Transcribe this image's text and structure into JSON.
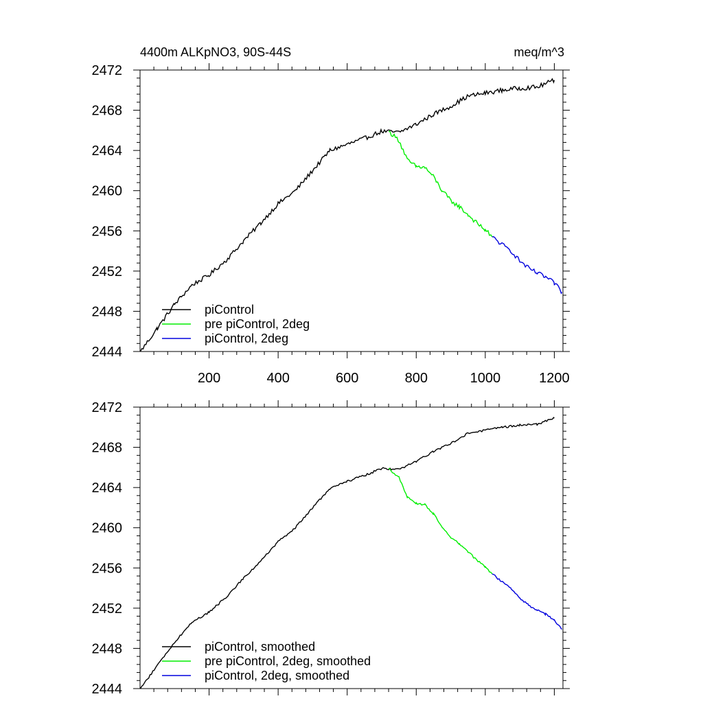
{
  "page": {
    "title_left": "4400m ALKpNO3, 90S-44S",
    "title_right": "meq/m^3"
  },
  "chart_data": [
    {
      "type": "line",
      "title": "4400m ALKpNO3, 90S-44S",
      "units": "meq/m^3",
      "xlim": [
        0,
        1225
      ],
      "ylim": [
        2444,
        2472
      ],
      "xticks": [
        200,
        400,
        600,
        800,
        1000,
        1200
      ],
      "yticks": [
        2444,
        2448,
        2452,
        2456,
        2460,
        2464,
        2468,
        2472
      ],
      "xticklabels": [
        "200",
        "400",
        "600",
        "800",
        "1000",
        "1200"
      ],
      "yticklabels": [
        "2444",
        "2448",
        "2452",
        "2456",
        "2460",
        "2464",
        "2468",
        "2472"
      ],
      "legend_position": "bottom-left",
      "series": [
        {
          "name": "piControl",
          "color": "#000000",
          "x": [
            1,
            50,
            100,
            150,
            200,
            250,
            300,
            350,
            400,
            450,
            500,
            550,
            600,
            650,
            700,
            750,
            800,
            850,
            900,
            950,
            1000,
            1050,
            1100,
            1150,
            1200
          ],
          "y": [
            2444.0,
            2446.3,
            2448.7,
            2450.6,
            2451.6,
            2453.1,
            2455.0,
            2456.8,
            2458.7,
            2460.0,
            2462.0,
            2464.0,
            2464.6,
            2465.2,
            2465.9,
            2465.8,
            2466.6,
            2467.6,
            2468.4,
            2469.4,
            2469.7,
            2470.0,
            2470.2,
            2470.3,
            2471.0
          ]
        },
        {
          "name": "pre piControl, 2deg",
          "color": "#00ee00",
          "x": [
            720,
            750,
            775,
            800,
            825,
            850,
            875,
            900,
            925,
            950,
            975,
            1000,
            1020
          ],
          "y": [
            2465.9,
            2465.0,
            2463.0,
            2462.4,
            2462.3,
            2461.4,
            2460.0,
            2459.0,
            2458.4,
            2457.6,
            2456.8,
            2456.1,
            2455.4
          ]
        },
        {
          "name": "piControl, 2deg",
          "color": "#0000dd",
          "x": [
            1020,
            1050,
            1075,
            1100,
            1125,
            1150,
            1175,
            1200,
            1222
          ],
          "y": [
            2455.4,
            2454.6,
            2454.0,
            2453.0,
            2452.3,
            2451.8,
            2451.4,
            2450.8,
            2449.9
          ]
        }
      ]
    },
    {
      "type": "line",
      "xlim": [
        0,
        1225
      ],
      "ylim": [
        2444,
        2472
      ],
      "xticks": [
        200,
        400,
        600,
        800,
        1000,
        1200
      ],
      "yticks": [
        2444,
        2448,
        2452,
        2456,
        2460,
        2464,
        2468,
        2472
      ],
      "yticklabels": [
        "2444",
        "2448",
        "2452",
        "2456",
        "2460",
        "2464",
        "2468",
        "2472"
      ],
      "legend_position": "bottom-left",
      "series": [
        {
          "name": "piControl, smoothed",
          "color": "#000000",
          "x": [
            1,
            50,
            100,
            150,
            200,
            250,
            300,
            350,
            400,
            450,
            500,
            550,
            600,
            650,
            700,
            750,
            800,
            850,
            900,
            950,
            1000,
            1050,
            1100,
            1150,
            1200
          ],
          "y": [
            2444.0,
            2446.3,
            2448.6,
            2450.6,
            2451.6,
            2453.1,
            2455.0,
            2456.7,
            2458.6,
            2460.0,
            2462.0,
            2463.9,
            2464.6,
            2465.2,
            2465.9,
            2465.8,
            2466.6,
            2467.6,
            2468.4,
            2469.4,
            2469.7,
            2470.0,
            2470.2,
            2470.3,
            2470.9
          ]
        },
        {
          "name": "pre piControl, 2deg, smoothed",
          "color": "#00ee00",
          "x": [
            720,
            750,
            775,
            800,
            825,
            850,
            875,
            900,
            925,
            950,
            975,
            1000,
            1020
          ],
          "y": [
            2465.9,
            2465.0,
            2463.0,
            2462.4,
            2462.3,
            2461.4,
            2460.0,
            2459.0,
            2458.4,
            2457.6,
            2456.8,
            2456.1,
            2455.4
          ]
        },
        {
          "name": "piControl, 2deg, smoothed",
          "color": "#0000dd",
          "x": [
            1020,
            1050,
            1075,
            1100,
            1125,
            1150,
            1175,
            1200,
            1222
          ],
          "y": [
            2455.4,
            2454.6,
            2454.0,
            2453.0,
            2452.3,
            2451.8,
            2451.4,
            2450.8,
            2449.9
          ]
        }
      ]
    }
  ]
}
